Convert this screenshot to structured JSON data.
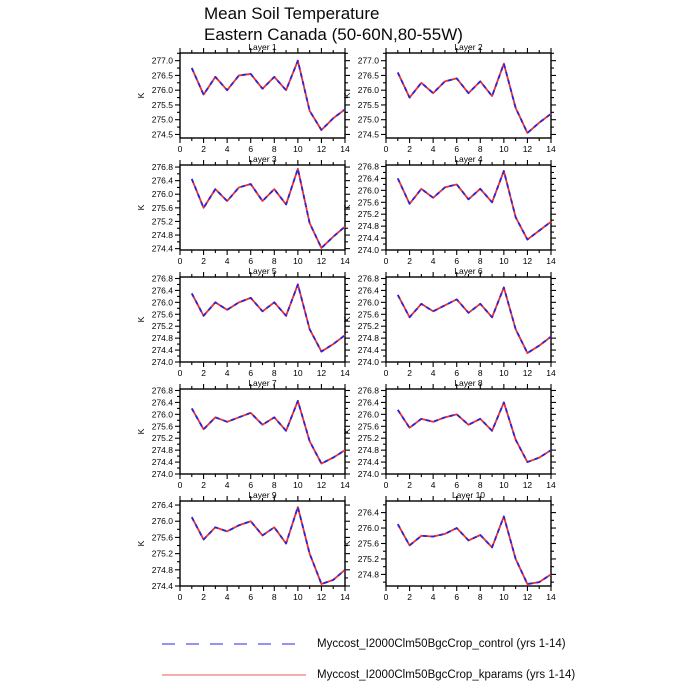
{
  "page": {
    "title_line1": "Mean Soil Temperature",
    "title_line2": "Eastern Canada (50-60N,80-55W)"
  },
  "chart_data": {
    "type": "line",
    "title": "Mean Soil Temperature Eastern Canada (50-60N,80-55W)",
    "xlabel": "",
    "ylabel": "K",
    "x": [
      1,
      2,
      3,
      4,
      5,
      6,
      7,
      8,
      9,
      10,
      11,
      12,
      13,
      14
    ],
    "xlim": [
      0,
      14
    ],
    "xticks": [
      0,
      2,
      4,
      6,
      8,
      10,
      12,
      14
    ],
    "xminorticks": [
      1,
      3,
      5,
      7,
      9,
      11,
      13
    ],
    "grid": false,
    "legend_position": "bottom",
    "legend": [
      {
        "label": "Myccost_I2000Clm50BgcCrop_control (yrs 1-14)",
        "style": "dashed",
        "legend_color": "#8484f2",
        "plot_color": "#2626dd"
      },
      {
        "label": "Myccost_I2000Clm50BgcCrop_kparams (yrs 1-14)",
        "style": "solid",
        "legend_color": "#f09494",
        "plot_color": "#ee3030"
      }
    ],
    "note": "both series overlap almost exactly in every panel",
    "panels": [
      {
        "title": "Layer 1",
        "ylim": [
          274.38,
          277.26
        ],
        "yticks": [
          274.5,
          275.0,
          275.5,
          276.0,
          276.5,
          277.0
        ],
        "series": [
          {
            "name": "control",
            "values": [
              276.75,
              275.85,
              276.45,
              276.0,
              276.5,
              276.55,
              276.05,
              276.45,
              276.0,
              277.0,
              275.3,
              274.65,
              275.05,
              275.35
            ]
          },
          {
            "name": "kparams",
            "values": [
              276.75,
              275.85,
              276.45,
              276.0,
              276.5,
              276.55,
              276.05,
              276.45,
              276.0,
              277.0,
              275.3,
              274.65,
              275.05,
              275.35
            ]
          }
        ]
      },
      {
        "title": "Layer 2",
        "ylim": [
          274.38,
          277.26
        ],
        "yticks": [
          274.5,
          275.0,
          275.5,
          276.0,
          276.5,
          277.0
        ],
        "series": [
          {
            "name": "control",
            "values": [
              276.6,
              275.75,
              276.25,
              275.9,
              276.3,
              276.4,
              275.9,
              276.3,
              275.8,
              276.9,
              275.4,
              274.55,
              274.9,
              275.2
            ]
          },
          {
            "name": "kparams",
            "values": [
              276.6,
              275.75,
              276.25,
              275.9,
              276.3,
              276.4,
              275.9,
              276.3,
              275.8,
              276.9,
              275.4,
              274.55,
              274.9,
              275.2
            ]
          }
        ]
      },
      {
        "title": "Layer 3",
        "ylim": [
          274.36,
          276.86
        ],
        "yticks": [
          274.4,
          274.8,
          275.2,
          275.6,
          276.0,
          276.4,
          276.8
        ],
        "series": [
          {
            "name": "control",
            "values": [
              276.45,
              275.6,
              276.15,
              275.8,
              276.2,
              276.3,
              275.8,
              276.15,
              275.7,
              276.75,
              275.15,
              274.42,
              274.75,
              275.05
            ]
          },
          {
            "name": "kparams",
            "values": [
              276.45,
              275.6,
              276.15,
              275.8,
              276.2,
              276.3,
              275.8,
              276.15,
              275.7,
              276.75,
              275.15,
              274.42,
              274.75,
              275.05
            ]
          }
        ]
      },
      {
        "title": "Layer 4",
        "ylim": [
          274.0,
          276.85
        ],
        "yticks": [
          274.0,
          274.4,
          274.8,
          275.2,
          275.6,
          276.0,
          276.4,
          276.8
        ],
        "series": [
          {
            "name": "control",
            "values": [
              276.4,
              275.55,
              276.05,
              275.75,
              276.1,
              276.2,
              275.7,
              276.05,
              275.6,
              276.65,
              275.1,
              274.35,
              274.65,
              274.95
            ]
          },
          {
            "name": "kparams",
            "values": [
              276.4,
              275.55,
              276.05,
              275.75,
              276.1,
              276.2,
              275.7,
              276.05,
              275.6,
              276.65,
              275.1,
              274.35,
              274.65,
              274.95
            ]
          }
        ]
      },
      {
        "title": "Layer 5",
        "ylim": [
          274.0,
          276.85
        ],
        "yticks": [
          274.0,
          274.4,
          274.8,
          275.2,
          275.6,
          276.0,
          276.4,
          276.8
        ],
        "series": [
          {
            "name": "control",
            "values": [
              276.3,
              275.55,
              276.0,
              275.75,
              276.0,
              276.15,
              275.7,
              276.0,
              275.55,
              276.6,
              275.1,
              274.35,
              274.6,
              274.9
            ]
          },
          {
            "name": "kparams",
            "values": [
              276.3,
              275.55,
              276.0,
              275.75,
              276.0,
              276.15,
              275.7,
              276.0,
              275.55,
              276.6,
              275.1,
              274.35,
              274.6,
              274.9
            ]
          }
        ]
      },
      {
        "title": "Layer 6",
        "ylim": [
          274.0,
          276.85
        ],
        "yticks": [
          274.0,
          274.4,
          274.8,
          275.2,
          275.6,
          276.0,
          276.4,
          276.8
        ],
        "series": [
          {
            "name": "control",
            "values": [
              276.25,
              275.5,
              275.95,
              275.7,
              275.9,
              276.1,
              275.65,
              275.95,
              275.5,
              276.5,
              275.1,
              274.3,
              274.55,
              274.85
            ]
          },
          {
            "name": "kparams",
            "values": [
              276.25,
              275.5,
              275.95,
              275.7,
              275.9,
              276.1,
              275.65,
              275.95,
              275.5,
              276.5,
              275.1,
              274.3,
              274.55,
              274.85
            ]
          }
        ]
      },
      {
        "title": "Layer 7",
        "ylim": [
          274.0,
          276.85
        ],
        "yticks": [
          274.0,
          274.4,
          274.8,
          275.2,
          275.6,
          276.0,
          276.4,
          276.8
        ],
        "series": [
          {
            "name": "control",
            "values": [
              276.2,
              275.5,
              275.9,
              275.75,
              275.9,
              276.05,
              275.65,
              275.9,
              275.45,
              276.45,
              275.1,
              274.35,
              274.55,
              274.8
            ]
          },
          {
            "name": "kparams",
            "values": [
              276.2,
              275.5,
              275.9,
              275.75,
              275.9,
              276.05,
              275.65,
              275.9,
              275.45,
              276.45,
              275.1,
              274.35,
              274.55,
              274.8
            ]
          }
        ]
      },
      {
        "title": "Layer 8",
        "ylim": [
          274.0,
          276.85
        ],
        "yticks": [
          274.0,
          274.4,
          274.8,
          275.2,
          275.6,
          276.0,
          276.4,
          276.8
        ],
        "series": [
          {
            "name": "control",
            "values": [
              276.15,
              275.55,
              275.85,
              275.75,
              275.9,
              276.0,
              275.65,
              275.85,
              275.45,
              276.4,
              275.15,
              274.4,
              274.55,
              274.8
            ]
          },
          {
            "name": "kparams",
            "values": [
              276.15,
              275.55,
              275.85,
              275.75,
              275.9,
              276.0,
              275.65,
              275.85,
              275.45,
              276.4,
              275.15,
              274.4,
              274.55,
              274.8
            ]
          }
        ]
      },
      {
        "title": "Layer 9",
        "ylim": [
          274.4,
          276.5
        ],
        "yticks": [
          274.4,
          274.8,
          275.2,
          275.6,
          276.0,
          276.4
        ],
        "series": [
          {
            "name": "control",
            "values": [
              276.1,
              275.55,
              275.85,
              275.75,
              275.9,
              276.0,
              275.65,
              275.85,
              275.45,
              276.35,
              275.2,
              274.45,
              274.55,
              274.8
            ]
          },
          {
            "name": "kparams",
            "values": [
              276.1,
              275.55,
              275.85,
              275.75,
              275.9,
              276.0,
              275.65,
              275.85,
              275.45,
              276.35,
              275.2,
              274.45,
              274.55,
              274.8
            ]
          }
        ]
      },
      {
        "title": "Layer 10",
        "ylim": [
          274.5,
          276.7
        ],
        "yticks": [
          274.8,
          275.2,
          275.6,
          276.0,
          276.4
        ],
        "series": [
          {
            "name": "control",
            "values": [
              276.1,
              275.55,
              275.8,
              275.78,
              275.85,
              276.0,
              275.68,
              275.82,
              275.5,
              276.3,
              275.2,
              274.55,
              274.6,
              274.8
            ]
          },
          {
            "name": "kparams",
            "values": [
              276.1,
              275.55,
              275.8,
              275.78,
              275.85,
              276.0,
              275.68,
              275.82,
              275.5,
              276.3,
              275.2,
              274.55,
              274.6,
              274.8
            ]
          }
        ]
      }
    ]
  }
}
